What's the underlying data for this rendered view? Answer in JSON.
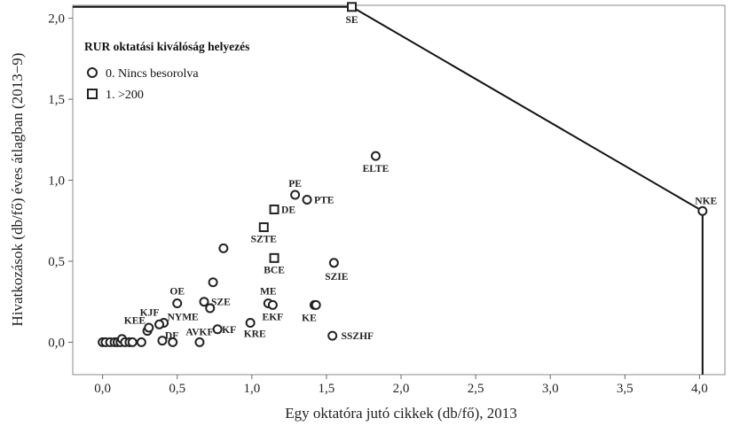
{
  "chart_data": {
    "type": "scatter",
    "xlabel": "Egy oktatóra jutó cikkek (db/fő), 2013",
    "ylabel": "Hivatkozások (db/fő) éves átlagban (2013−9)",
    "xlim": [
      -0.2,
      4.17
    ],
    "ylim": [
      -0.2,
      2.08
    ],
    "x_ticks": [
      "0,0",
      "0,5",
      "1,0",
      "1,5",
      "2,0",
      "2,5",
      "3,0",
      "3,5",
      "4,0"
    ],
    "x_tick_values": [
      0,
      0.5,
      1.0,
      1.5,
      2.0,
      2.5,
      3.0,
      3.5,
      4.0
    ],
    "y_ticks": [
      "0,0",
      "0,5",
      "1,0",
      "1,5",
      "2,0"
    ],
    "y_tick_values": [
      0,
      0.5,
      1.0,
      1.5,
      2.0
    ],
    "grid": false,
    "legend": {
      "title": "RUR oktatási kiválóság helyezés",
      "position": "top-left",
      "entries": [
        {
          "marker": "circle",
          "label": "0. Nincs besorolva"
        },
        {
          "marker": "square",
          "label": "1. >200"
        }
      ]
    },
    "frontier": {
      "points": [
        [
          -0.2,
          2.07
        ],
        [
          1.67,
          2.07
        ],
        [
          4.02,
          0.81
        ],
        [
          4.02,
          -0.2
        ]
      ]
    },
    "series": [
      {
        "marker": "circle",
        "points": [
          {
            "x": 1.83,
            "y": 1.15,
            "label": "ELTE"
          },
          {
            "x": 1.29,
            "y": 0.91,
            "label": "PE"
          },
          {
            "x": 1.37,
            "y": 0.88,
            "label": "PTE"
          },
          {
            "x": 4.02,
            "y": 0.81,
            "label": "NKE"
          },
          {
            "x": 0.81,
            "y": 0.58,
            "label": ""
          },
          {
            "x": 1.55,
            "y": 0.49,
            "label": "SZIE"
          },
          {
            "x": 0.74,
            "y": 0.37,
            "label": ""
          },
          {
            "x": 0.5,
            "y": 0.24,
            "label": "OE"
          },
          {
            "x": 0.68,
            "y": 0.25,
            "label": "SZE"
          },
          {
            "x": 0.72,
            "y": 0.21,
            "label": ""
          },
          {
            "x": 1.11,
            "y": 0.24,
            "label": "ME"
          },
          {
            "x": 1.14,
            "y": 0.23,
            "label": "EKF"
          },
          {
            "x": 1.42,
            "y": 0.23,
            "label": "KE"
          },
          {
            "x": 1.43,
            "y": 0.23,
            "label": ""
          },
          {
            "x": 0.41,
            "y": 0.12,
            "label": "NYME"
          },
          {
            "x": 0.38,
            "y": 0.11,
            "label": "KJF"
          },
          {
            "x": 0.99,
            "y": 0.12,
            "label": "KRE"
          },
          {
            "x": 0.3,
            "y": 0.07,
            "label": "KEE"
          },
          {
            "x": 0.31,
            "y": 0.09,
            "label": ""
          },
          {
            "x": 0.77,
            "y": 0.08,
            "label": "KF"
          },
          {
            "x": 1.54,
            "y": 0.04,
            "label": "SSZHF"
          },
          {
            "x": 0.4,
            "y": 0.01,
            "label": "DF"
          },
          {
            "x": 0.65,
            "y": 0.0,
            "label": "AVKF"
          },
          {
            "x": 0.47,
            "y": 0.0,
            "label": ""
          },
          {
            "x": 0.0,
            "y": 0.0,
            "label": ""
          },
          {
            "x": 0.02,
            "y": 0.0,
            "label": ""
          },
          {
            "x": 0.05,
            "y": 0.0,
            "label": ""
          },
          {
            "x": 0.08,
            "y": 0.0,
            "label": ""
          },
          {
            "x": 0.1,
            "y": 0.0,
            "label": ""
          },
          {
            "x": 0.12,
            "y": 0.0,
            "label": ""
          },
          {
            "x": 0.13,
            "y": 0.02,
            "label": ""
          },
          {
            "x": 0.15,
            "y": 0.0,
            "label": ""
          },
          {
            "x": 0.18,
            "y": 0.0,
            "label": ""
          },
          {
            "x": 0.2,
            "y": 0.0,
            "label": ""
          },
          {
            "x": 0.26,
            "y": 0.0,
            "label": ""
          }
        ]
      },
      {
        "marker": "square",
        "points": [
          {
            "x": 1.67,
            "y": 2.07,
            "label": "SE"
          },
          {
            "x": 1.15,
            "y": 0.82,
            "label": "DE"
          },
          {
            "x": 1.08,
            "y": 0.71,
            "label": "SZTE"
          },
          {
            "x": 1.15,
            "y": 0.52,
            "label": "BCE"
          }
        ]
      }
    ]
  }
}
